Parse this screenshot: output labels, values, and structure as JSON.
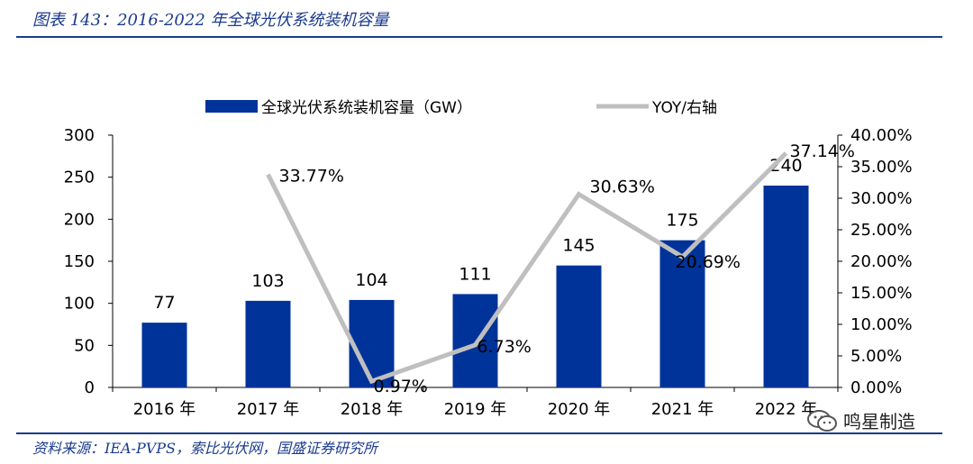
{
  "figure_title": "图表 143：2016-2022 年全球光伏系统装机容量",
  "source": "资料来源：IEA-PVPS，索比光伏网，国盛证券研究所",
  "watermark": "鸣星制造",
  "chart_data": {
    "type": "bar",
    "categories": [
      "2016 年",
      "2017 年",
      "2018 年",
      "2019 年",
      "2020 年",
      "2021 年",
      "2022 年"
    ],
    "series": [
      {
        "name": "全球光伏系统装机容量（GW）",
        "type": "bar",
        "axis": "left",
        "color": "#003399",
        "values": [
          77,
          103,
          104,
          111,
          145,
          175,
          240
        ],
        "labels": [
          "77",
          "103",
          "104",
          "111",
          "145",
          "175",
          "240"
        ]
      },
      {
        "name": "YOY/右轴",
        "type": "line",
        "axis": "right",
        "color": "#bfbfbf",
        "values": [
          null,
          33.77,
          0.97,
          6.73,
          30.63,
          20.69,
          37.14
        ],
        "labels": [
          "",
          "33.77%",
          "0.97%",
          "6.73%",
          "30.63%",
          "20.69%",
          "37.14%"
        ]
      }
    ],
    "y_left": {
      "ylim": [
        0,
        300
      ],
      "ticks": [
        "0",
        "50",
        "100",
        "150",
        "200",
        "250",
        "300"
      ]
    },
    "y_right": {
      "ylim": [
        0,
        40
      ],
      "ticks": [
        "0.00%",
        "5.00%",
        "10.00%",
        "15.00%",
        "20.00%",
        "25.00%",
        "30.00%",
        "35.00%",
        "40.00%"
      ]
    },
    "legend_position": "top",
    "grid": false
  }
}
